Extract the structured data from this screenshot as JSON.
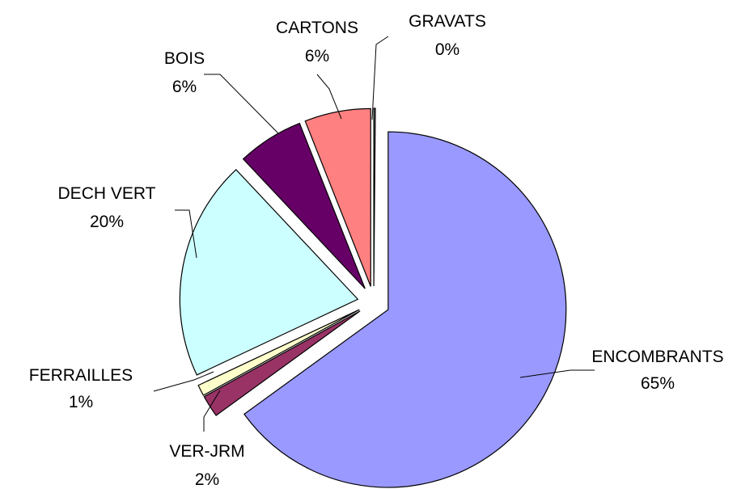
{
  "chart_data": {
    "type": "pie",
    "exploded": true,
    "start_angle_deg": 0,
    "direction": "clockwise",
    "legend": "none",
    "slices": [
      {
        "name": "ENCOMBRANTS",
        "value": 65,
        "label": "65%",
        "color": "#9999ff"
      },
      {
        "name": "VER-JRM",
        "value": 2,
        "label": "2%",
        "color": "#993366"
      },
      {
        "name": "FERRAILLES",
        "value": 1,
        "label": "1%",
        "color": "#ffffcc"
      },
      {
        "name": "DECH VERT",
        "value": 20,
        "label": "20%",
        "color": "#ccffff"
      },
      {
        "name": "BOIS",
        "value": 6,
        "label": "6%",
        "color": "#660066"
      },
      {
        "name": "CARTONS",
        "value": 6,
        "label": "6%",
        "color": "#ff8080"
      },
      {
        "name": "GRAVATS",
        "value": 0,
        "label": "0%",
        "color": "#808080"
      }
    ]
  }
}
